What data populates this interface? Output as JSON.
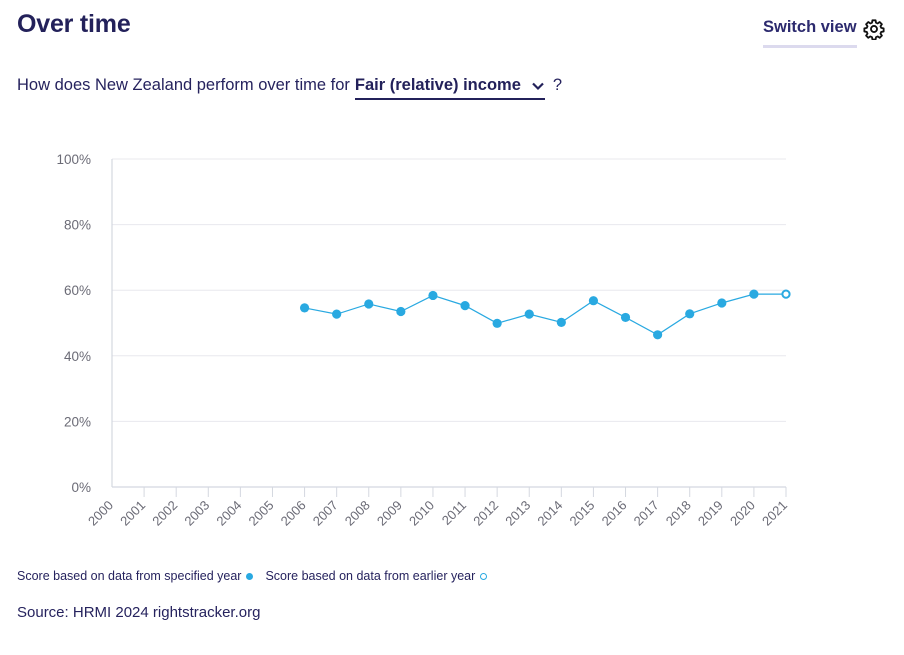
{
  "header": {
    "title": "Over time",
    "switch_view_label": "Switch view",
    "settings_icon": "gear-icon"
  },
  "question": {
    "prefix": "How does New Zealand perform over time for",
    "selected_right": "Fair (relative) income",
    "dropdown_icon": "chevron-down-icon",
    "suffix": "?"
  },
  "legend": {
    "specified_label": "Score based on data from specified year",
    "earlier_label": "Score based on data from earlier year"
  },
  "source": "Source: HRMI 2024 rightstracker.org",
  "colors": {
    "series": "#29a9e1",
    "text": "#26235e",
    "axis_text": "#6b6b76",
    "grid": "#e8e8ee"
  },
  "chart_data": {
    "type": "line",
    "title": "",
    "xlabel": "",
    "ylabel": "",
    "ylim": [
      0,
      100
    ],
    "y_ticks": [
      "0%",
      "20%",
      "40%",
      "60%",
      "80%",
      "100%"
    ],
    "y_tick_values": [
      0,
      20,
      40,
      60,
      80,
      100
    ],
    "x": [
      "2000",
      "2001",
      "2002",
      "2003",
      "2004",
      "2005",
      "2006",
      "2007",
      "2008",
      "2009",
      "2010",
      "2011",
      "2012",
      "2013",
      "2014",
      "2015",
      "2016",
      "2017",
      "2018",
      "2019",
      "2020",
      "2021"
    ],
    "grid": true,
    "series": [
      {
        "name": "Fair (relative) income",
        "values": [
          null,
          null,
          null,
          null,
          null,
          null,
          54.6,
          52.7,
          55.8,
          53.5,
          58.4,
          55.3,
          49.9,
          52.7,
          50.2,
          56.8,
          51.7,
          46.4,
          52.8,
          56.1,
          58.8,
          58.8
        ],
        "data_from_earlier_year": [
          false,
          false,
          false,
          false,
          false,
          false,
          false,
          false,
          false,
          false,
          false,
          false,
          false,
          false,
          false,
          false,
          false,
          false,
          false,
          false,
          false,
          true
        ]
      }
    ],
    "legend": [
      "Score based on data from specified year",
      "Score based on data from earlier year"
    ]
  }
}
